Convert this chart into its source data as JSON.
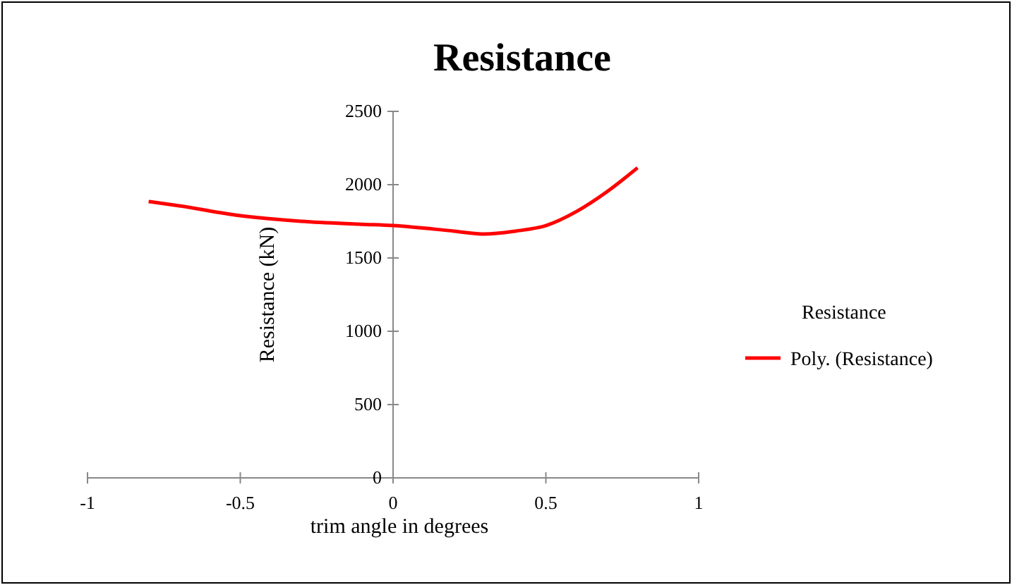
{
  "chart_data": {
    "type": "line",
    "title": "Resistance",
    "xlabel": "trim angle in degrees",
    "ylabel": "Resistance (kN)",
    "legend_title": "Resistance",
    "xlim": [
      -1,
      1
    ],
    "xticks": [
      -1,
      -0.5,
      0,
      0.5,
      1
    ],
    "ylim": [
      0,
      2500
    ],
    "yticks": [
      0,
      500,
      1000,
      1500,
      2000,
      2500
    ],
    "grid": false,
    "legend": "right",
    "marker": "none",
    "line_style": "solid",
    "series": [
      {
        "name": "Poly. (Resistance)",
        "color": "#ff0000",
        "x": [
          -0.8,
          -0.7,
          -0.5,
          -0.3,
          -0.1,
          0,
          0.2,
          0.3,
          0.4,
          0.5,
          0.6,
          0.7,
          0.8
        ],
        "values": [
          1885,
          1856,
          1788,
          1750,
          1730,
          1721,
          1683,
          1663,
          1683,
          1721,
          1817,
          1952,
          2115
        ]
      }
    ]
  }
}
